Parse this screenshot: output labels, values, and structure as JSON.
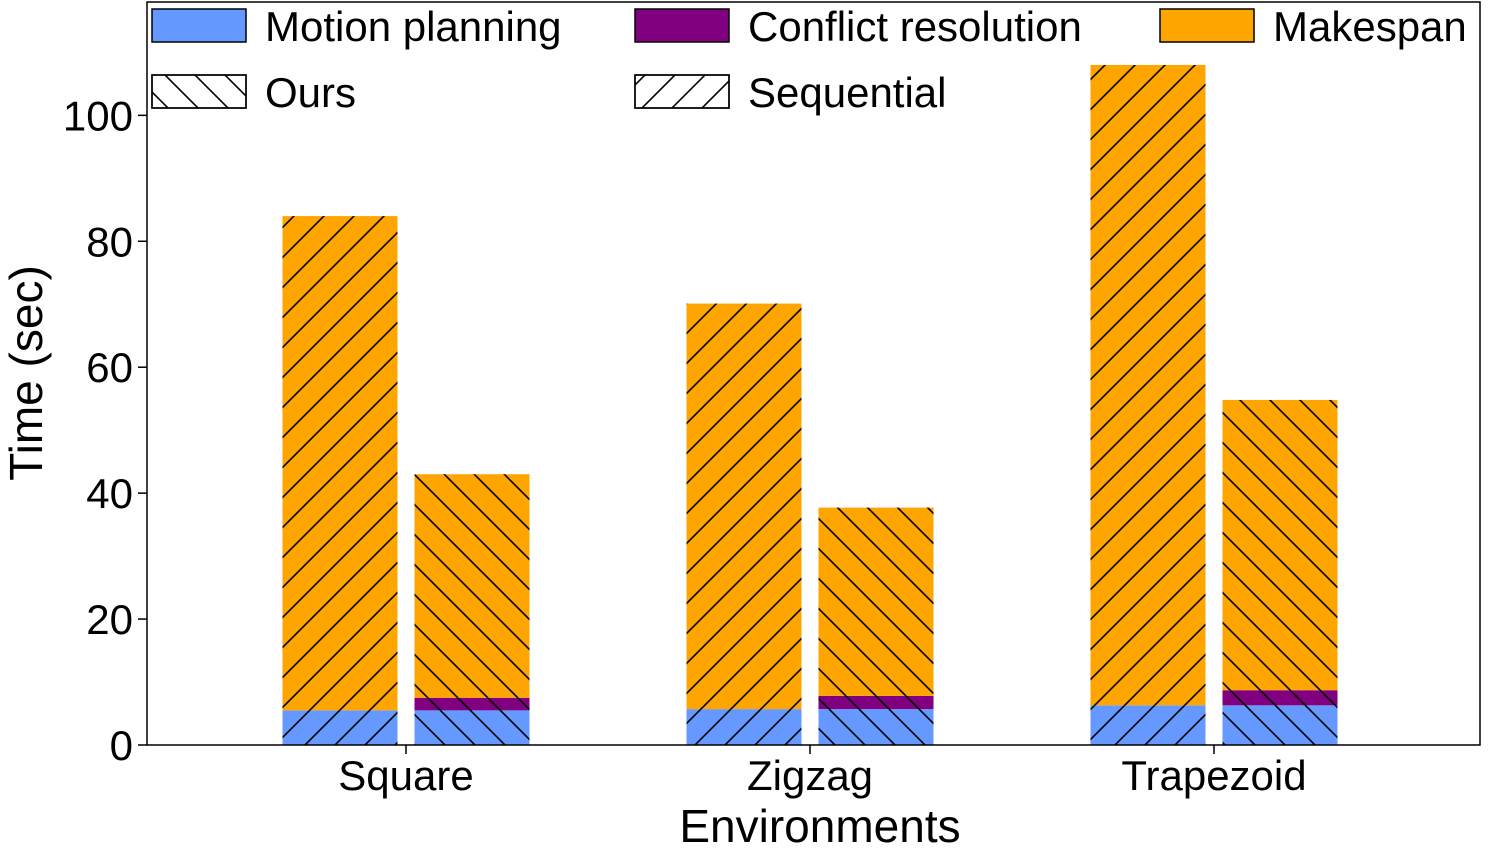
{
  "chart_data": {
    "type": "bar",
    "stacked": true,
    "title": "",
    "xlabel": "Environments",
    "ylabel": "Time (sec)",
    "ylim": [
      0,
      118
    ],
    "yticks": [
      0,
      20,
      40,
      60,
      80,
      100
    ],
    "categories": [
      "Square",
      "Zigzag",
      "Trapezoid"
    ],
    "methods": [
      {
        "name": "Sequential",
        "hatch": "forward"
      },
      {
        "name": "Ours",
        "hatch": "back"
      }
    ],
    "components": [
      {
        "name": "Motion planning",
        "color": "#6699ff"
      },
      {
        "name": "Conflict resolution",
        "color": "#800080"
      },
      {
        "name": "Makespan",
        "color": "#ffa500"
      }
    ],
    "series": [
      {
        "name": "Sequential",
        "values": {
          "Motion planning": [
            5.5,
            5.7,
            6.3
          ],
          "Conflict resolution": [
            0,
            0,
            0
          ],
          "Makespan": [
            78.5,
            64.4,
            101.7
          ]
        }
      },
      {
        "name": "Ours",
        "values": {
          "Motion planning": [
            5.5,
            5.7,
            6.3
          ],
          "Conflict resolution": [
            2.0,
            2.1,
            2.4
          ],
          "Makespan": [
            35.5,
            29.9,
            46.1
          ]
        }
      }
    ],
    "legend": {
      "placement": "top",
      "entries": [
        {
          "label": "Motion planning",
          "color": "#6699ff",
          "hatch": "none"
        },
        {
          "label": "Conflict resolution",
          "color": "#800080",
          "hatch": "none"
        },
        {
          "label": "Makespan",
          "color": "#ffa500",
          "hatch": "none"
        },
        {
          "label": "Ours",
          "color": "#ffffff",
          "hatch": "back"
        },
        {
          "label": "Sequential",
          "color": "#ffffff",
          "hatch": "forward"
        }
      ]
    }
  }
}
